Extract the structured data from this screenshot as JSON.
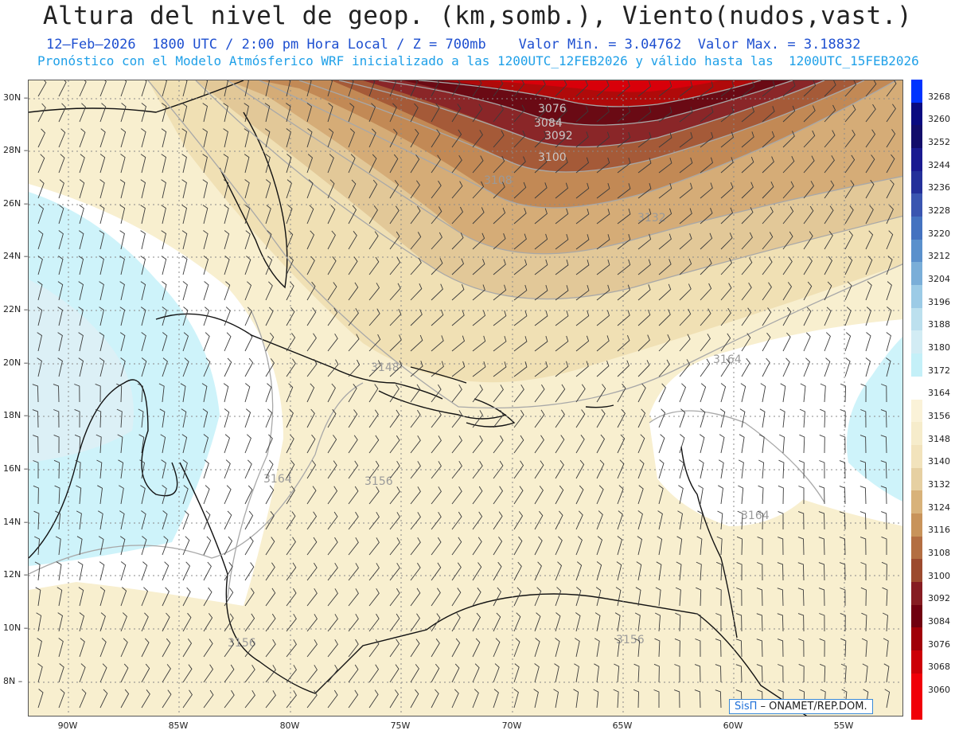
{
  "header": {
    "title": "Altura del nivel de geop. (km,somb.), Viento(nudos,vast.)",
    "subtitle": "12–Feb–2026  1800 UTC / 2:00 pm Hora Local / Z = 700mb    Valor Min. = 3.04762  Valor Max. = 3.18832",
    "forecast_line": "Pronóstico con el Modelo Atmósferico WRF inicializado a las 1200UTC_12FEB2026 y válido hasta las  1200UTC_15FEB2026"
  },
  "map": {
    "lat_labels": [
      "30N",
      "28N",
      "26N",
      "24N",
      "22N",
      "20N",
      "18N",
      "16N",
      "14N",
      "12N",
      "10N",
      "8N"
    ],
    "lon_labels": [
      "90W",
      "85W",
      "80W",
      "75W",
      "70W",
      "65W",
      "60W",
      "55W"
    ],
    "contour_labels": [
      "3076",
      "3084",
      "3092",
      "3100",
      "3108",
      "3132",
      "3148",
      "3156",
      "3156",
      "3156",
      "3164",
      "3164",
      "3164"
    ]
  },
  "colorbar": {
    "labels": [
      "3268",
      "3260",
      "3252",
      "3244",
      "3236",
      "3228",
      "3220",
      "3212",
      "3204",
      "3196",
      "3188",
      "3180",
      "3172",
      "3164",
      "3156",
      "3148",
      "3140",
      "3132",
      "3124",
      "3116",
      "3108",
      "3100",
      "3092",
      "3084",
      "3076",
      "3068",
      "3060"
    ],
    "colors": [
      "#0033ff",
      "#0a0a80",
      "#120c6a",
      "#1a1a90",
      "#24309a",
      "#3a55b0",
      "#4472c0",
      "#5a90cc",
      "#7aaed8",
      "#9ccbe6",
      "#bce0ee",
      "#d2ecf4",
      "#c4f0f8",
      "#ffffff",
      "#faf2d8",
      "#f6eccb",
      "#f2e3bc",
      "#e6d0a2",
      "#d8b27a",
      "#c8935a",
      "#b36e42",
      "#9c4a2e",
      "#861c22",
      "#700010",
      "#a00008",
      "#cc0006",
      "#f00008"
    ]
  },
  "credit": {
    "brand": "SisΠ",
    "text": " – ONAMET/REP.DOM."
  }
}
